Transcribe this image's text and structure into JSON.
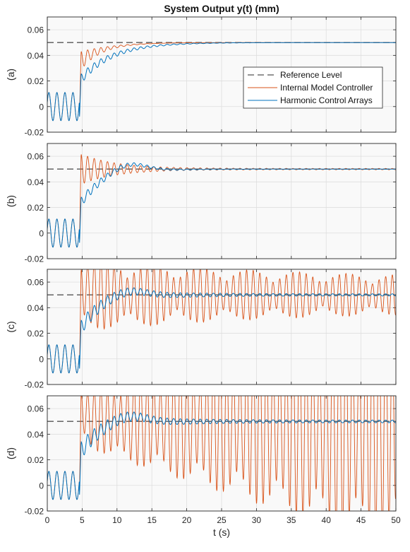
{
  "chart_data": {
    "type": "line",
    "title": "System Output y(t) (mm)",
    "xlabel": "t (s)",
    "xlim": [
      0,
      50
    ],
    "xticks": [
      0,
      5,
      10,
      15,
      20,
      25,
      30,
      35,
      40,
      45,
      50
    ],
    "grid": true,
    "legend": {
      "placement": "right-middle of panel (a)",
      "entries": [
        "Reference Level",
        "Internal Model Controller",
        "Harmonic Control Arrays"
      ]
    },
    "colors": {
      "reference": "#555555",
      "imc": "#d95319",
      "hca": "#0072bd",
      "panel_bg": "#f9f9f9",
      "grid": "#dedede"
    },
    "reference_level": 0.05,
    "initial_oscillation": {
      "t_start": 0,
      "t_end": 4.6,
      "amplitude": 0.011,
      "period": 1.15
    },
    "panels": [
      {
        "id": "a",
        "ylabel": "(a)",
        "ylim": [
          -0.02,
          0.07
        ],
        "yticks": [
          "-0.02",
          "0",
          "0.02",
          "0.04",
          "0.06"
        ],
        "series": [
          {
            "name": "Reference Level",
            "style": "dashed",
            "value": 0.05
          },
          {
            "name": "Internal Model Controller",
            "step_time": 4.6,
            "peak": 0.035,
            "settle_tau": 3.5,
            "ripple_amp": 0.008,
            "ripple_decay": 2.5,
            "ripple_period": 0.95,
            "sustained_amp": 0.0
          },
          {
            "name": "Harmonic Control Arrays",
            "step_time": 4.6,
            "peak": 0.02,
            "settle_tau": 4.5,
            "ripple_amp": 0.004,
            "ripple_decay": 6.0,
            "ripple_period": 0.95,
            "sustained_amp": 0.0
          }
        ]
      },
      {
        "id": "b",
        "ylabel": "(b)",
        "ylim": [
          -0.02,
          0.07
        ],
        "yticks": [
          "-0.02",
          "0",
          "0.02",
          "0.04",
          "0.06"
        ],
        "series": [
          {
            "name": "Reference Level",
            "style": "dashed",
            "value": 0.05
          },
          {
            "name": "Internal Model Controller",
            "step_time": 4.6,
            "peak": 0.05,
            "settle_tau": 2.0,
            "ripple_amp": 0.012,
            "ripple_decay": 5.0,
            "ripple_period": 0.95,
            "sustained_amp": 0.0005
          },
          {
            "name": "Harmonic Control Arrays",
            "step_time": 4.6,
            "peak": 0.022,
            "settle_tau": 3.5,
            "ripple_amp": 0.004,
            "ripple_decay": 7.0,
            "ripple_period": 0.95,
            "overshoot": 0.007,
            "sustained_amp": 0.0
          }
        ]
      },
      {
        "id": "c",
        "ylabel": "(c)",
        "ylim": [
          -0.02,
          0.07
        ],
        "yticks": [
          "-0.02",
          "0",
          "0.02",
          "0.04",
          "0.06"
        ],
        "series": [
          {
            "name": "Reference Level",
            "style": "dashed",
            "value": 0.05
          },
          {
            "name": "Internal Model Controller",
            "step_time": 4.6,
            "peak": 0.055,
            "settle_tau": 1.5,
            "ripple_amp": 0.017,
            "ripple_decay": 30.0,
            "ripple_period": 0.95,
            "sustained_amp": 0.012
          },
          {
            "name": "Harmonic Control Arrays",
            "step_time": 4.6,
            "peak": 0.022,
            "settle_tau": 3.0,
            "ripple_amp": 0.005,
            "ripple_decay": 9.0,
            "ripple_period": 0.95,
            "overshoot": 0.005,
            "sustained_amp": 0.0008
          }
        ]
      },
      {
        "id": "d",
        "ylabel": "(d)",
        "ylim": [
          -0.02,
          0.07
        ],
        "yticks": [
          "-0.02",
          "0",
          "0.02",
          "0.04",
          "0.06"
        ],
        "series": [
          {
            "name": "Reference Level",
            "style": "dashed",
            "value": 0.05
          },
          {
            "name": "Internal Model Controller",
            "step_time": 4.6,
            "peak": 0.062,
            "settle_tau": 1.2,
            "ripple_amp": 0.02,
            "growth_end_amp": 0.09,
            "ripple_period": 0.95,
            "diverging": true
          },
          {
            "name": "Harmonic Control Arrays",
            "step_time": 4.6,
            "peak": 0.025,
            "settle_tau": 3.0,
            "ripple_amp": 0.006,
            "ripple_decay": 9.0,
            "ripple_period": 0.95,
            "overshoot": 0.006,
            "sustained_amp": 0.001
          }
        ]
      }
    ]
  }
}
